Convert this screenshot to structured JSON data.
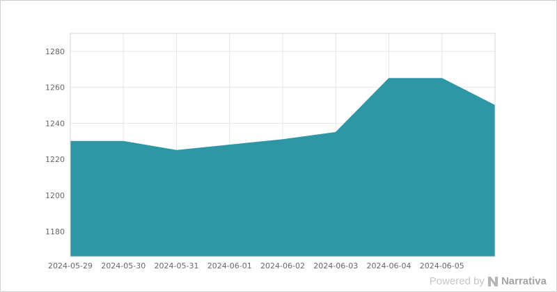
{
  "page": {
    "background": "#ffffff"
  },
  "footer": {
    "powered_by": "Powered by",
    "brand": "Narrativa"
  },
  "chart_data": {
    "type": "area",
    "title": "",
    "xlabel": "",
    "ylabel": "",
    "x_labels": [
      "2024-05-29",
      "2024-05-30",
      "2024-05-31",
      "2024-06-01",
      "2024-06-02",
      "2024-06-03",
      "2024-06-04",
      "2024-06-05"
    ],
    "values": [
      1230,
      1230,
      1225,
      1228,
      1231,
      1235,
      1265,
      1265,
      1250
    ],
    "series_extends_one_step_past_last_label": true,
    "y_ticks": [
      1180,
      1200,
      1220,
      1240,
      1260,
      1280
    ],
    "ylim": [
      1166,
      1290
    ],
    "grid": true,
    "legend": "none",
    "colors": {
      "area_fill": "#2e96a5",
      "area_stroke": "#2e96a5",
      "grid_line": "#e6e6e6",
      "plot_border": "#d6d6d6",
      "axis_label": "#666666",
      "footer_text": "#c6c6c6",
      "footer_brand": "#a3a3a3",
      "logo": "#b5b5b5"
    }
  }
}
